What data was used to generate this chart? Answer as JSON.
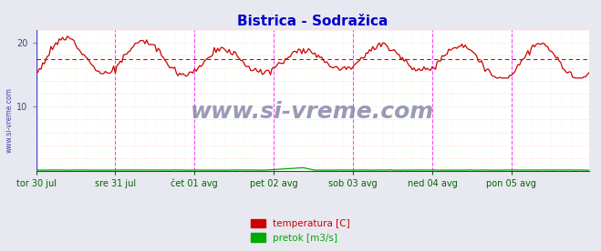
{
  "title": "Bistrica - Sodražica",
  "title_color": "#0000cc",
  "title_fontsize": 11,
  "bg_color": "#e8e8f0",
  "plot_bg_color": "#ffffff",
  "ylim": [
    0,
    22
  ],
  "yticks": [
    10,
    20
  ],
  "grid_h_color": "#ffaaaa",
  "grid_v_color": "#ccffcc",
  "vline_color": "#ff44ff",
  "avg_line_color": "#dd0000",
  "avg_line_value": 17.4,
  "watermark": "www.si-vreme.com",
  "watermark_color": "#8888aa",
  "watermark_fontsize": 18,
  "legend_labels": [
    "temperatura [C]",
    "pretok [m3/s]"
  ],
  "legend_colors": [
    "#cc0000",
    "#00aa00"
  ],
  "xtick_labels": [
    "tor 30 jul",
    "sre 31 jul",
    "čet 01 avg",
    "pet 02 avg",
    "sob 03 avg",
    "ned 04 avg",
    "pon 05 avg"
  ],
  "n_points": 336,
  "sidebar_text": "www.si-vreme.com",
  "sidebar_color": "#4444aa",
  "temp_color": "#cc0000",
  "flow_color": "#00aa00",
  "spine_color": "#4444cc"
}
